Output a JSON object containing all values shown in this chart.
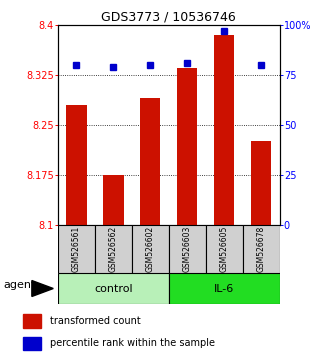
{
  "title": "GDS3773 / 10536746",
  "samples": [
    "GSM526561",
    "GSM526562",
    "GSM526602",
    "GSM526603",
    "GSM526605",
    "GSM526678"
  ],
  "red_values": [
    8.28,
    8.175,
    8.29,
    8.335,
    8.385,
    8.225
  ],
  "blue_values": [
    80,
    79,
    80,
    81,
    97,
    80
  ],
  "y_min": 8.1,
  "y_max": 8.4,
  "y_ticks": [
    8.1,
    8.175,
    8.25,
    8.325,
    8.4
  ],
  "y_right_ticks": [
    0,
    25,
    50,
    75,
    100
  ],
  "y_right_labels": [
    "0",
    "25",
    "50",
    "75",
    "100%"
  ],
  "control_color": "#b8f0b8",
  "il6_color": "#22dd22",
  "bar_color": "#cc1100",
  "dot_color": "#0000cc",
  "bar_width": 0.55,
  "title_fontsize": 9,
  "tick_fontsize": 7,
  "legend_fontsize": 7,
  "group_label_fontsize": 8,
  "agent_fontsize": 8,
  "sample_fontsize": 5.5
}
